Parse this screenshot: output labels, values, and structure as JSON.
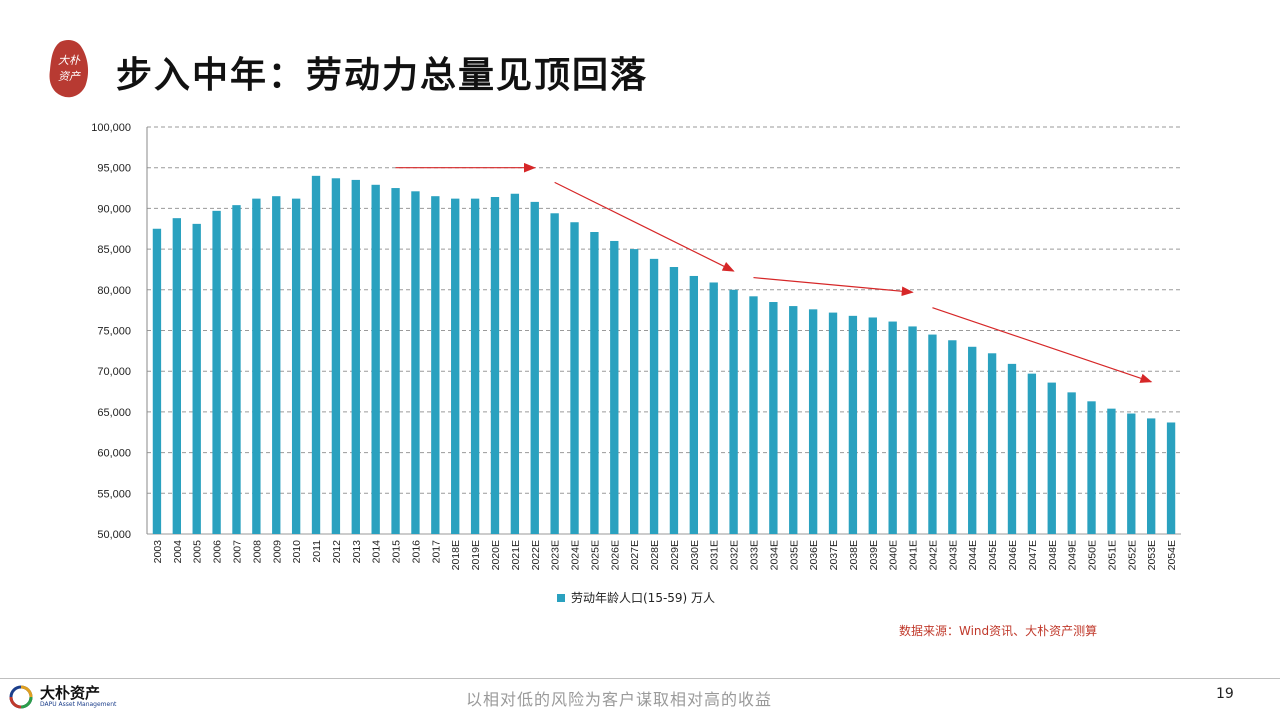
{
  "header": {
    "title": "步入中年：劳动力总量见顶回落",
    "logo_text": "大朴资产",
    "logo_color": "#b83a32"
  },
  "chart_data": {
    "type": "bar",
    "title": "",
    "xlabel": "",
    "ylabel": "",
    "ylim": [
      50000,
      100000
    ],
    "yticks": [
      50000,
      55000,
      60000,
      65000,
      70000,
      75000,
      80000,
      85000,
      90000,
      95000,
      100000
    ],
    "ytick_labels": [
      "50,000",
      "55,000",
      "60,000",
      "65,000",
      "70,000",
      "75,000",
      "80,000",
      "85,000",
      "90,000",
      "95,000",
      "100,000"
    ],
    "grid": "horizontal-dashed",
    "bar_color": "#2aa1bf",
    "arrow_color": "#d62728",
    "categories": [
      "2003",
      "2004",
      "2005",
      "2006",
      "2007",
      "2008",
      "2009",
      "2010",
      "2011",
      "2012",
      "2013",
      "2014",
      "2015",
      "2016",
      "2017",
      "2018E",
      "2019E",
      "2020E",
      "2021E",
      "2022E",
      "2023E",
      "2024E",
      "2025E",
      "2026E",
      "2027E",
      "2028E",
      "2029E",
      "2030E",
      "2031E",
      "2032E",
      "2033E",
      "2034E",
      "2035E",
      "2036E",
      "2037E",
      "2038E",
      "2039E",
      "2040E",
      "2041E",
      "2042E",
      "2043E",
      "2044E",
      "2045E",
      "2046E",
      "2047E",
      "2048E",
      "2049E",
      "2050E",
      "2051E",
      "2052E",
      "2053E",
      "2054E"
    ],
    "series": [
      {
        "name": "劳动年龄人口(15-59) 万人",
        "values": [
          87500,
          88800,
          88100,
          89700,
          90400,
          91200,
          91500,
          91200,
          94000,
          93700,
          93500,
          92900,
          92500,
          92100,
          91500,
          91200,
          91200,
          91400,
          91800,
          90800,
          89400,
          88300,
          87100,
          86000,
          85000,
          83800,
          82800,
          81700,
          80900,
          80000,
          79200,
          78500,
          78000,
          77600,
          77200,
          76800,
          76600,
          76100,
          75500,
          74500,
          73800,
          73000,
          72200,
          70900,
          69700,
          68600,
          67400,
          66300,
          65400,
          64800,
          64200,
          63700
        ]
      }
    ],
    "trend_arrows": [
      {
        "from": [
          "2015",
          95000
        ],
        "to": [
          "2022E",
          95000
        ]
      },
      {
        "from": [
          "2023E",
          93200
        ],
        "to": [
          "2032E",
          82300
        ]
      },
      {
        "from": [
          "2033E",
          81500
        ],
        "to": [
          "2041E",
          79700
        ]
      },
      {
        "from": [
          "2042E",
          77800
        ],
        "to": [
          "2053E",
          68700
        ]
      }
    ],
    "legend_position": "bottom"
  },
  "legend": {
    "label": "劳动年龄人口(15-59) 万人"
  },
  "source": "数据来源：Wind资讯、大朴资产测算",
  "footer": {
    "brand": "大朴资产",
    "brand_sub": "DAPU Asset Management",
    "slogan": "以相对低的风险为客户谋取相对高的收益",
    "page_number": "19"
  }
}
